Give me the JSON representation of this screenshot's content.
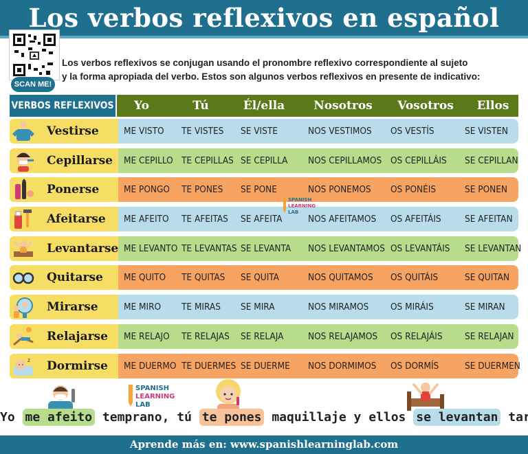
{
  "title": "Los verbos reflexivos en español",
  "scan_label": "SCAN ME!",
  "intro": {
    "line1": "Los verbos reflexivos se conjugan usando el pronombre reflexivo correspondiente al sujeto",
    "line2": "y la forma apropiada del verbo. Estos son algunos verbos reflexivos en presente de indicativo:"
  },
  "table": {
    "headers": [
      "VERBOS REFLEXIVOS",
      "Yo",
      "Tú",
      "Él/ella",
      "Nosotros",
      "Vosotros",
      "Ellos"
    ],
    "rows": [
      {
        "verb": "Vestirse",
        "icon": "shirt-person-icon",
        "cells": [
          "ME VISTO",
          "TE VISTES",
          "SE VISTE",
          "NOS VESTIMOS",
          "OS VESTÍS",
          "SE VISTEN"
        ]
      },
      {
        "verb": "Cepillarse",
        "icon": "toothbrush-person-icon",
        "cells": [
          "ME CEPILLO",
          "TE CEPILLAS",
          "SE CEPILLA",
          "NOS CEPILLAMOS",
          "OS CEPILLÁIS",
          "SE CEPILLAN"
        ]
      },
      {
        "verb": "Ponerse",
        "icon": "makeup-icon",
        "cells": [
          "ME PONGO",
          "TE PONES",
          "SE PONE",
          "NOS PONEMOS",
          "OS PONÉIS",
          "SE PONEN"
        ]
      },
      {
        "verb": "Afeitarse",
        "icon": "razor-icon",
        "cells": [
          "ME AFEITO",
          "TE AFEITAS",
          "SE AFEITA",
          "NOS AFEITAMOS",
          "OS AFEITÁIS",
          "SE AFEITAN"
        ]
      },
      {
        "verb": "Levantarse",
        "icon": "waking-person-icon",
        "cells": [
          "ME LEVANTO",
          "TE LEVANTAS",
          "SE  LEVANTA",
          "NOS LEVANTAMOS",
          "OS LEVANTÁIS",
          "SE LEVANTAN"
        ]
      },
      {
        "verb": "Quitarse",
        "icon": "glasses-icon",
        "cells": [
          "ME QUITO",
          "TE QUITAS",
          "SE QUITA",
          "NOS QUITAMOS",
          "OS QUITÁIS",
          "SE QUITAN"
        ]
      },
      {
        "verb": "Mirarse",
        "icon": "mirror-icon",
        "cells": [
          "ME MIRO",
          "TE MIRAS",
          "SE MIRA",
          "NOS MIRAMOS",
          "OS MIRÁIS",
          "SE MIRAN"
        ]
      },
      {
        "verb": "Relajarse",
        "icon": "sunbathing-icon",
        "cells": [
          "ME RELAJO",
          "TE RELAJAS",
          "SE  RELAJA",
          "NOS RELAJAMOS",
          "OS RELAJÁIS",
          "SE RELAJAN"
        ]
      },
      {
        "verb": "Dormirse",
        "icon": "sleeping-icon",
        "cells": [
          "ME DUERMO",
          "TE DUERMES",
          "SE DUERME",
          "NOS DORMIMOS",
          "OS DORMÍS",
          "SE DUERMEN"
        ]
      }
    ],
    "row_colors": [
      "blue",
      "green",
      "orange",
      "blue",
      "green",
      "orange",
      "blue",
      "green",
      "orange"
    ]
  },
  "logo": {
    "line1": "SPANISH",
    "line2": "LEARNING",
    "line3": "LAB"
  },
  "sentence": {
    "p1": "Yo ",
    "h1": "me afeito",
    "p2": " temprano, tú ",
    "h2": "te pones",
    "p3": " maquillaje y ellos ",
    "h3": "se levantan",
    "p4": " tarde."
  },
  "footer": "Aprende más en: www.spanishlearninglab.com",
  "colors": {
    "title_bg": "#1f6f8f",
    "header_green": "#5a7a1a",
    "blue": "#b9dcea",
    "green": "#b6dc8c",
    "orange": "#f7a463",
    "yellow": "#f6dd63"
  }
}
